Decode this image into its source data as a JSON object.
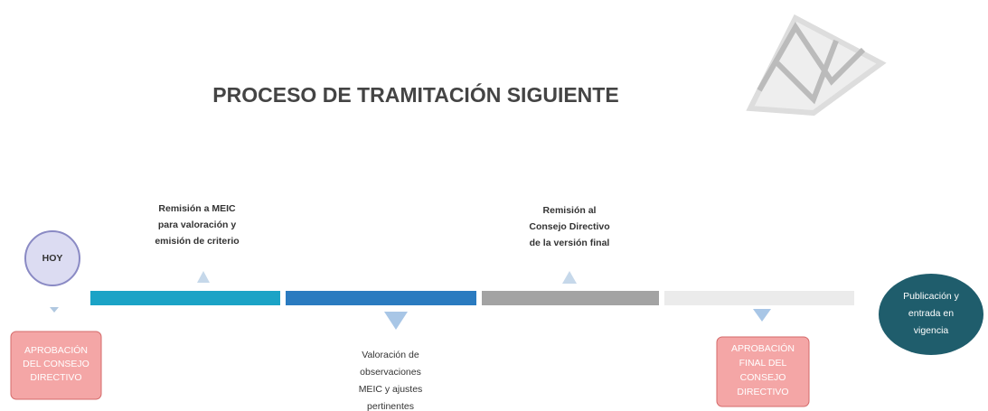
{
  "header": {
    "title": "PROCESO DE TRAMITACIÓN SIGUIENTE"
  },
  "nodes": [
    {
      "label": [
        "HOY"
      ]
    },
    {
      "label": [
        "APROBACIÓN",
        "DEL CONSEJO",
        "DIRECTIVO"
      ]
    },
    {
      "label": [
        "Remisión a MEIC",
        "para valoración y",
        "emisión de criterio"
      ]
    },
    {
      "label": [
        "Valoración de",
        "observaciones",
        "MEIC y ajustes",
        "pertinentes"
      ]
    },
    {
      "label": [
        "Remisión al",
        "Consejo Directivo",
        "de la versión final"
      ]
    },
    {
      "label": [
        "APROBACIÓN",
        "FINAL DEL",
        "CONSEJO",
        "DIRECTIVO"
      ]
    },
    {
      "label": [
        "Publicación y",
        "entrada en",
        "vigencia"
      ]
    }
  ]
}
